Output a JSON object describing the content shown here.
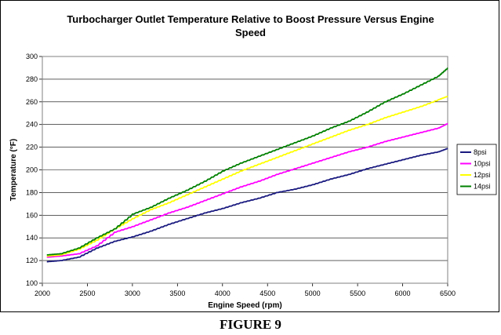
{
  "chart_data": {
    "type": "line",
    "title_line1": "Turbocharger Outlet Temperature Relative to Boost Pressure Versus Engine",
    "title_line2": "Speed",
    "xlabel": "Engine Speed (rpm)",
    "ylabel": "Temperature (°F)",
    "xlim": [
      2000,
      6500
    ],
    "ylim": [
      100,
      300
    ],
    "xticks": [
      "2000",
      "2500",
      "3000",
      "3500",
      "4000",
      "4500",
      "5000",
      "5500",
      "6000",
      "6500"
    ],
    "yticks": [
      "100",
      "120",
      "140",
      "160",
      "180",
      "200",
      "220",
      "240",
      "260",
      "280",
      "300"
    ],
    "grid": "horizontal",
    "legend_position": "right",
    "x": [
      2050,
      2200,
      2400,
      2600,
      2800,
      3000,
      3200,
      3400,
      3600,
      3800,
      4000,
      4200,
      4400,
      4600,
      4800,
      5000,
      5200,
      5400,
      5600,
      5800,
      6000,
      6200,
      6400,
      6500
    ],
    "series": [
      {
        "name": "8psi",
        "color": "#1a1a80",
        "values": [
          119,
          120,
          123,
          131,
          137,
          141,
          146,
          152,
          157,
          162,
          166,
          171,
          175,
          180,
          183,
          187,
          192,
          196,
          201,
          205,
          209,
          213,
          216,
          219
        ]
      },
      {
        "name": "10psi",
        "color": "#ff00ff",
        "values": [
          123,
          124,
          126,
          133,
          145,
          150,
          156,
          162,
          167,
          173,
          179,
          185,
          190,
          196,
          201,
          206,
          211,
          216,
          220,
          225,
          229,
          233,
          237,
          241
        ]
      },
      {
        "name": "12psi",
        "color": "#ffff00",
        "values": [
          124,
          125,
          130,
          138,
          148,
          157,
          165,
          171,
          178,
          185,
          192,
          199,
          205,
          211,
          217,
          223,
          229,
          235,
          240,
          246,
          251,
          256,
          262,
          265
        ]
      },
      {
        "name": "14psi",
        "color": "#008000",
        "values": [
          125,
          126,
          131,
          140,
          148,
          161,
          167,
          175,
          182,
          190,
          199,
          206,
          212,
          218,
          224,
          230,
          237,
          243,
          251,
          260,
          267,
          275,
          283,
          290
        ]
      }
    ]
  },
  "figure_caption": "FIGURE 9"
}
